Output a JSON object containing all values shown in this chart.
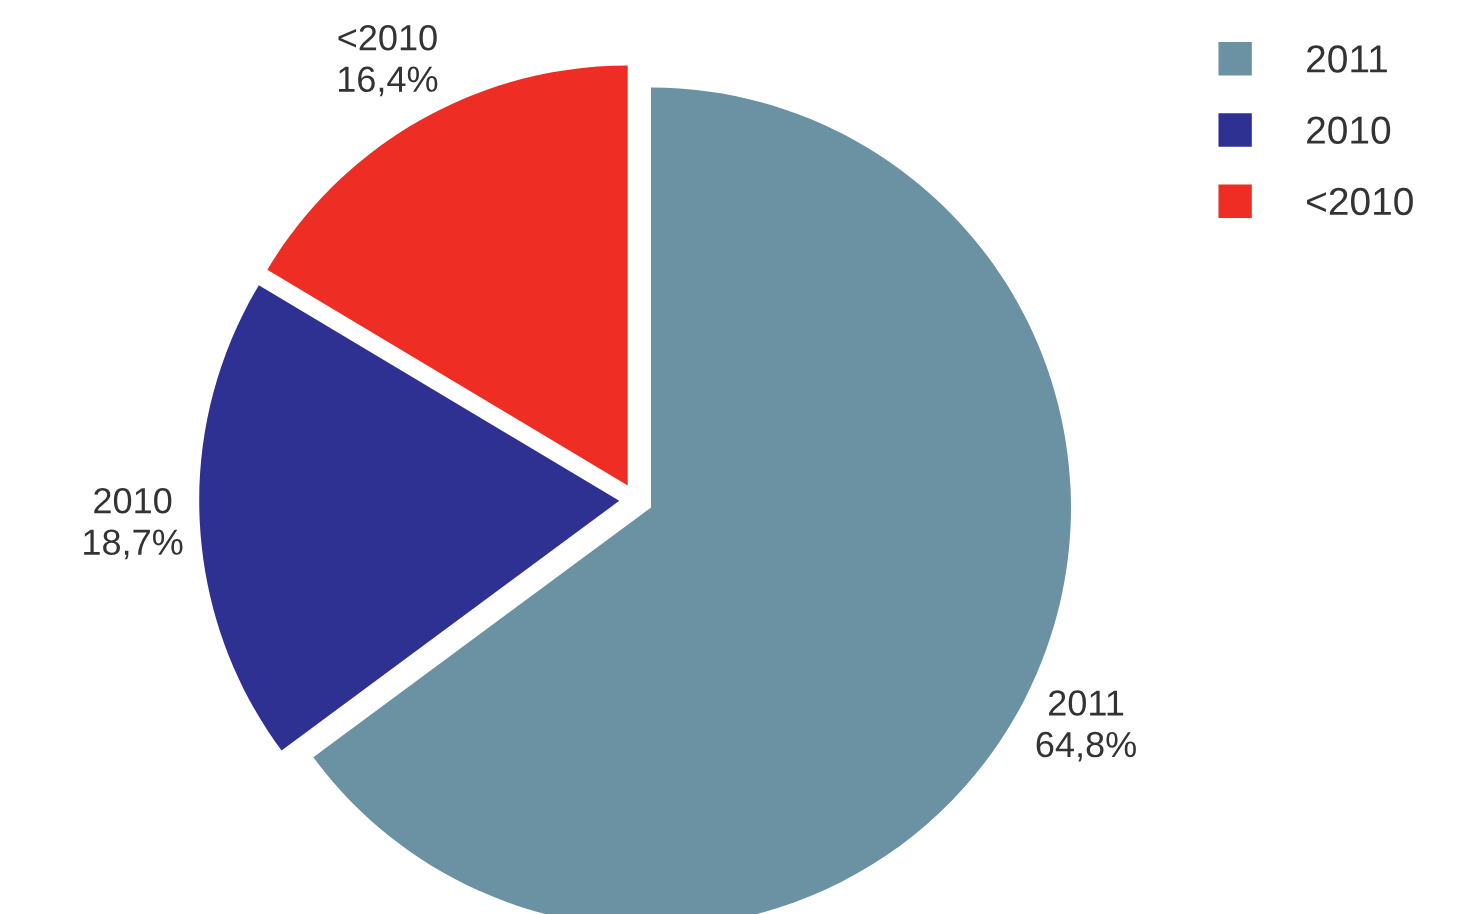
{
  "chart_data": {
    "type": "pie",
    "categories": [
      "2011",
      "2010",
      "<2010"
    ],
    "values": [
      64.8,
      18.7,
      16.4
    ],
    "value_labels": [
      "64,8%",
      "18,7%",
      "16,4%"
    ],
    "colors": [
      "#6b92a3",
      "#2e3192",
      "#ee2e24"
    ],
    "legend": "top right"
  }
}
